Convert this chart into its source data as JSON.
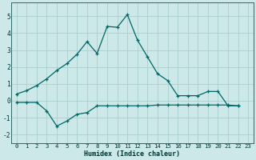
{
  "xlabel": "Humidex (Indice chaleur)",
  "line1_x": [
    0,
    1,
    2,
    3,
    4,
    5,
    6,
    7,
    8,
    9,
    10,
    11,
    12,
    13,
    14,
    15,
    16,
    17,
    18,
    19,
    20,
    21,
    22
  ],
  "line1_y": [
    0.4,
    0.6,
    0.9,
    1.3,
    1.8,
    2.2,
    2.75,
    3.5,
    2.8,
    4.4,
    4.35,
    5.1,
    3.6,
    2.6,
    1.6,
    1.2,
    0.3,
    0.3,
    0.3,
    0.55,
    0.55,
    -0.3,
    -0.3
  ],
  "line2_x": [
    0,
    1,
    2,
    3,
    4,
    5,
    6,
    7,
    8,
    9,
    10,
    11,
    12,
    13,
    14,
    15,
    16,
    17,
    18,
    19,
    20,
    21,
    22
  ],
  "line2_y": [
    -0.1,
    -0.1,
    -0.1,
    -0.6,
    -1.5,
    -1.2,
    -0.8,
    -0.7,
    -0.3,
    -0.3,
    -0.3,
    -0.3,
    -0.3,
    -0.3,
    -0.25,
    -0.25,
    -0.25,
    -0.25,
    -0.25,
    -0.25,
    -0.25,
    -0.25,
    -0.3
  ],
  "bg_color": "#cce8e8",
  "grid_color": "#aacece",
  "line_color": "#006666",
  "ylim": [
    -2.5,
    5.8
  ],
  "xlim": [
    -0.5,
    23.5
  ],
  "yticks": [
    -2,
    -1,
    0,
    1,
    2,
    3,
    4,
    5
  ],
  "xticks": [
    0,
    1,
    2,
    3,
    4,
    5,
    6,
    7,
    8,
    9,
    10,
    11,
    12,
    13,
    14,
    15,
    16,
    17,
    18,
    19,
    20,
    21,
    22,
    23
  ],
  "tick_fontsize": 5.2,
  "xlabel_fontsize": 6.0
}
